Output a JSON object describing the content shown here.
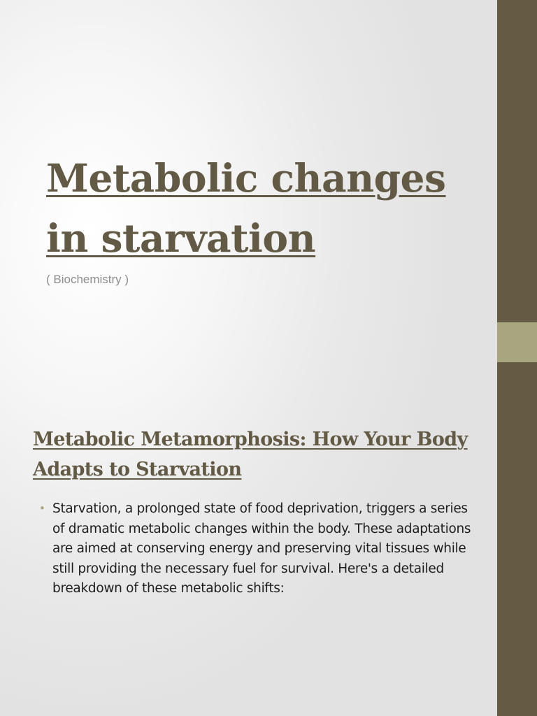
{
  "slide": {
    "title": "Metabolic changes in starvation",
    "subtitle": "( Biochemistry )"
  },
  "section": {
    "heading": "Metabolic Metamorphosis: How Your Body Adapts to Starvation",
    "bullets": [
      {
        "marker": "•",
        "text": "Starvation, a prolonged state of food deprivation, triggers a series of dramatic metabolic changes within the body. These adaptations are aimed at conserving energy and preserving vital tissues while still providing the necessary fuel for survival. Here's a detailed breakdown of these metabolic shifts:"
      }
    ]
  },
  "colors": {
    "title": "#625a44",
    "side_bar": "#655b45",
    "side_accent": "#a8a67f",
    "subtitle": "#8e8e8e",
    "body_text": "#1e1e1e"
  }
}
